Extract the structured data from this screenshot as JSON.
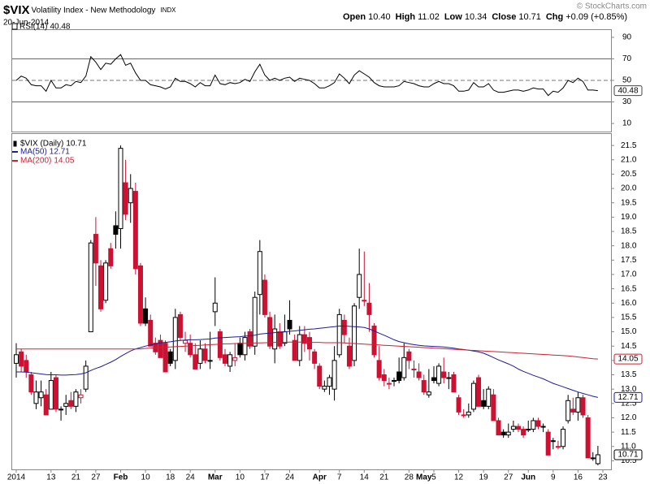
{
  "header": {
    "symbol": "$VIX",
    "name": "Volatility Index - New Methodology",
    "exchange": "INDX",
    "date": "20-Jun-2014",
    "watermark": "© StockCharts.com",
    "quote": [
      {
        "label": "Open",
        "value": "10.40"
      },
      {
        "label": "High",
        "value": "11.02"
      },
      {
        "label": "Low",
        "value": "10.34"
      },
      {
        "label": "Close",
        "value": "10.71"
      },
      {
        "label": "Chg",
        "value": "+0.09 (+0.85%)"
      }
    ]
  },
  "chart_data": [
    {
      "type": "line",
      "ylim": [
        2.5,
        97.5
      ],
      "yticks": [
        10,
        30,
        50,
        70,
        90
      ],
      "levels": [
        {
          "value": 70,
          "style": "solid"
        },
        {
          "value": 50,
          "style": "dashed"
        },
        {
          "value": 30,
          "style": "solid"
        }
      ],
      "series": [
        {
          "name": "RSI(14)",
          "label": "40.48",
          "color": "#000000",
          "values": [
            50,
            54,
            52,
            46,
            45,
            45,
            40,
            50,
            43,
            43,
            46,
            45,
            49,
            48,
            54,
            72,
            67,
            60,
            66,
            65,
            70,
            74,
            64,
            66,
            57,
            50,
            50,
            46,
            45,
            44,
            42,
            44,
            52,
            49,
            49,
            47,
            44,
            48,
            45,
            45,
            55,
            47,
            46,
            48,
            47,
            48,
            51,
            49,
            58,
            65,
            55,
            50,
            52,
            50,
            52,
            53,
            49,
            52,
            51,
            50,
            47,
            43,
            43,
            45,
            48,
            56,
            52,
            47,
            55,
            59,
            56,
            53,
            48,
            45,
            44,
            44,
            44,
            45,
            49,
            48,
            47,
            45,
            44,
            44,
            47,
            49,
            47,
            47,
            45,
            40,
            40,
            41,
            48,
            44,
            44,
            47,
            41,
            39,
            39,
            40,
            41,
            41,
            40,
            41,
            43,
            42,
            42,
            36,
            40,
            39,
            43,
            50,
            48,
            52,
            49,
            41,
            41,
            40.48,
            null
          ]
        }
      ]
    },
    {
      "type": "candlestick",
      "ylim": [
        10.2,
        21.9
      ],
      "yticks": [
        10.5,
        {
          "value": 11,
          "label": "11.0"
        },
        11.5,
        {
          "value": 12,
          "label": "12.0"
        },
        12.5,
        {
          "value": 13,
          "label": "13.0"
        },
        13.5,
        {
          "value": 14,
          "label": "14.0"
        },
        14.5,
        {
          "value": 15,
          "label": "15.0"
        },
        15.5,
        {
          "value": 16,
          "label": "16.0"
        },
        16.5,
        {
          "value": 17,
          "label": "17.0"
        },
        17.5,
        {
          "value": 18,
          "label": "18.0"
        },
        18.5,
        {
          "value": 19,
          "label": "19.0"
        },
        19.5,
        {
          "value": 20,
          "label": "20.0"
        },
        20.5,
        {
          "value": 21,
          "label": "21.0"
        },
        21.5
      ],
      "colors": {
        "up": "#000000",
        "down": "#cc1133"
      },
      "categories": [
        "2014",
        null,
        null,
        null,
        null,
        null,
        null,
        "13",
        null,
        null,
        null,
        null,
        "21",
        null,
        null,
        null,
        "27",
        null,
        null,
        null,
        null,
        "Feb",
        null,
        null,
        null,
        null,
        "10",
        null,
        null,
        null,
        null,
        "18",
        null,
        null,
        null,
        "24",
        null,
        null,
        null,
        null,
        "Mar",
        null,
        null,
        null,
        null,
        "10",
        null,
        null,
        null,
        null,
        "17",
        null,
        null,
        null,
        null,
        "24",
        null,
        null,
        null,
        null,
        null,
        "Apr",
        null,
        null,
        null,
        "7",
        null,
        null,
        null,
        null,
        "14",
        null,
        null,
        null,
        "21",
        null,
        null,
        null,
        null,
        "28",
        null,
        null,
        "May",
        null,
        "5",
        null,
        null,
        null,
        null,
        "12",
        null,
        null,
        null,
        null,
        "19",
        null,
        null,
        null,
        null,
        "27",
        null,
        null,
        null,
        "Jun",
        null,
        null,
        null,
        null,
        "9",
        null,
        null,
        null,
        null,
        "16",
        null,
        null,
        null,
        null,
        "23"
      ],
      "series": [
        {
          "name": "$VIX (Daily)",
          "label": "10.71",
          "color": "#000000",
          "open": [
            13.9,
            14.3,
            14.0,
            13.5,
            12.5,
            12.7,
            12.8,
            12.3,
            13.4,
            12.3,
            12.4,
            12.6,
            12.4,
            12.7,
            13.0,
            15.0,
            18.4,
            17.3,
            16.1,
            17.9,
            18.7,
            18.6,
            20.2,
            19.5,
            19.9,
            17.3,
            15.8,
            15.4,
            14.6,
            14.7,
            14.6,
            14.3,
            14.0,
            15.6,
            14.6,
            14.6,
            14.2,
            13.9,
            14.4,
            14.0,
            15.7,
            15.0,
            14.2,
            13.8,
            14.0,
            14.6,
            14.2,
            15.0,
            14.5,
            16.3,
            16.8,
            15.5,
            14.4,
            15.0,
            14.6,
            15.4,
            14.7,
            14.0,
            14.9,
            14.8,
            14.3,
            13.8,
            13.0,
            13.1,
            13.0,
            14.2,
            15.4,
            14.5,
            14.0,
            16.2,
            16.1,
            16.0,
            15.2,
            14.0,
            13.5,
            13.2,
            13.3,
            13.6,
            13.4,
            14.3,
            13.7,
            13.6,
            13.3,
            12.8,
            13.4,
            13.2,
            13.6,
            13.4,
            13.5,
            12.7,
            12.1,
            12.1,
            12.3,
            13.4,
            12.6,
            12.4,
            12.8,
            11.9,
            11.5,
            11.4,
            11.6,
            11.7,
            11.6,
            11.6,
            11.6,
            11.9,
            11.7,
            11.5,
            11.2,
            11.0,
            11.0,
            11.9,
            12.3,
            12.2,
            12.7,
            12.0,
            10.6,
            10.4,
            null
          ],
          "high": [
            14.6,
            14.4,
            14.2,
            13.6,
            13.3,
            13.3,
            13.0,
            13.6,
            13.5,
            12.4,
            12.8,
            12.9,
            13.0,
            13.0,
            14.0,
            18.2,
            19.0,
            17.5,
            17.5,
            18.1,
            19.2,
            21.5,
            21.0,
            20.5,
            20.2,
            17.4,
            16.2,
            15.6,
            14.8,
            14.9,
            14.7,
            14.4,
            15.8,
            15.7,
            15.0,
            14.9,
            14.6,
            14.7,
            14.6,
            15.0,
            16.9,
            15.1,
            14.4,
            14.3,
            14.6,
            14.8,
            15.0,
            15.1,
            16.4,
            18.2,
            17.0,
            15.7,
            15.6,
            15.3,
            15.6,
            16.1,
            14.9,
            15.2,
            15.2,
            15.0,
            14.4,
            13.9,
            13.3,
            13.5,
            14.5,
            15.8,
            15.6,
            14.8,
            16.0,
            17.9,
            17.8,
            16.7,
            15.3,
            14.5,
            13.7,
            13.4,
            13.4,
            14.1,
            14.6,
            14.4,
            14.0,
            13.9,
            13.5,
            13.7,
            13.8,
            13.9,
            14.1,
            13.6,
            13.6,
            12.8,
            12.3,
            12.5,
            13.3,
            13.5,
            13.0,
            13.1,
            13.0,
            12.0,
            11.6,
            11.8,
            11.9,
            11.8,
            11.7,
            11.9,
            12.0,
            12.0,
            11.8,
            11.6,
            11.3,
            11.2,
            11.7,
            12.8,
            12.7,
            12.9,
            12.8,
            12.1,
            10.8,
            11.02,
            null
          ],
          "low": [
            13.4,
            13.6,
            13.4,
            12.8,
            12.3,
            12.4,
            12.1,
            12.3,
            12.2,
            11.9,
            12.1,
            12.3,
            12.2,
            12.5,
            12.9,
            15.0,
            16.6,
            15.7,
            16.0,
            17.2,
            17.9,
            17.9,
            18.9,
            18.8,
            17.0,
            15.2,
            15.2,
            14.5,
            14.2,
            14.1,
            13.6,
            13.8,
            13.7,
            14.7,
            14.3,
            14.1,
            13.7,
            13.7,
            13.9,
            13.7,
            15.2,
            14.0,
            13.8,
            13.6,
            13.8,
            14.1,
            14.0,
            14.4,
            14.2,
            15.6,
            15.5,
            14.4,
            13.9,
            14.4,
            14.5,
            14.9,
            14.0,
            13.8,
            14.3,
            14.0,
            13.7,
            13.0,
            12.9,
            12.8,
            12.6,
            14.1,
            14.6,
            13.7,
            13.8,
            15.8,
            15.9,
            15.0,
            14.1,
            13.3,
            13.1,
            13.0,
            13.1,
            13.2,
            13.3,
            13.7,
            13.4,
            13.3,
            12.8,
            12.7,
            13.2,
            13.1,
            13.2,
            13.0,
            12.9,
            12.1,
            12.0,
            12.0,
            12.2,
            12.4,
            12.3,
            12.3,
            11.9,
            11.4,
            11.3,
            11.3,
            11.5,
            11.5,
            11.3,
            11.5,
            11.5,
            11.6,
            11.5,
            10.7,
            10.9,
            10.9,
            10.9,
            11.8,
            12.1,
            11.9,
            12.0,
            10.6,
            10.5,
            10.34,
            null
          ],
          "close": [
            14.2,
            13.8,
            13.6,
            12.9,
            12.9,
            12.9,
            12.1,
            13.3,
            12.3,
            12.3,
            12.5,
            12.4,
            12.9,
            12.8,
            13.8,
            18.1,
            17.4,
            15.8,
            17.4,
            17.3,
            18.4,
            21.4,
            19.1,
            20.0,
            17.2,
            15.3,
            15.3,
            14.5,
            14.3,
            14.1,
            13.6,
            13.9,
            15.5,
            14.8,
            14.7,
            14.2,
            13.7,
            14.4,
            14.0,
            14.0,
            16.0,
            14.1,
            13.9,
            14.2,
            14.1,
            14.2,
            14.8,
            14.5,
            16.2,
            17.8,
            15.6,
            14.5,
            15.1,
            14.5,
            15.0,
            15.1,
            14.0,
            14.9,
            14.6,
            14.4,
            13.9,
            13.1,
            13.1,
            13.4,
            14.0,
            15.6,
            14.9,
            13.8,
            15.9,
            17.0,
            16.1,
            15.6,
            14.2,
            13.4,
            13.3,
            13.2,
            13.3,
            13.3,
            14.1,
            14.0,
            13.7,
            13.4,
            12.9,
            12.9,
            13.3,
            13.8,
            13.4,
            13.4,
            12.9,
            12.2,
            12.1,
            12.2,
            13.2,
            12.4,
            12.4,
            13.0,
            11.9,
            11.4,
            11.4,
            11.5,
            11.7,
            11.6,
            11.4,
            11.6,
            11.9,
            11.7,
            11.7,
            10.7,
            11.2,
            11.0,
            11.6,
            12.6,
            12.2,
            12.7,
            12.1,
            10.6,
            10.6,
            10.71,
            null
          ]
        },
        {
          "name": "MA(50)",
          "label": "12.71",
          "color": "#1c1c9c",
          "values": [
            13.6,
            13.6,
            13.59,
            13.57,
            13.55,
            13.53,
            13.51,
            13.5,
            13.5,
            13.49,
            13.49,
            13.5,
            13.51,
            13.53,
            13.57,
            13.65,
            13.72,
            13.78,
            13.86,
            13.94,
            14.03,
            14.14,
            14.24,
            14.33,
            14.4,
            14.45,
            14.5,
            14.54,
            14.58,
            14.61,
            14.63,
            14.65,
            14.68,
            14.7,
            14.71,
            14.72,
            14.72,
            14.73,
            14.74,
            14.75,
            14.78,
            14.79,
            14.8,
            14.81,
            14.82,
            14.83,
            14.85,
            14.86,
            14.88,
            14.92,
            14.94,
            14.95,
            14.97,
            14.98,
            15.0,
            15.02,
            15.03,
            15.05,
            15.07,
            15.09,
            15.1,
            15.12,
            15.14,
            15.16,
            15.18,
            15.2,
            15.2,
            15.19,
            15.18,
            15.17,
            15.15,
            15.1,
            15.03,
            14.95,
            14.88,
            14.8,
            14.72,
            14.66,
            14.62,
            14.58,
            14.55,
            14.53,
            14.51,
            14.5,
            14.49,
            14.48,
            14.47,
            14.45,
            14.43,
            14.4,
            14.38,
            14.36,
            14.33,
            14.3,
            14.25,
            14.18,
            14.1,
            14.02,
            13.95,
            13.88,
            13.8,
            13.7,
            13.62,
            13.55,
            13.48,
            13.42,
            13.36,
            13.28,
            13.2,
            13.14,
            13.08,
            13.02,
            12.96,
            12.9,
            12.85,
            12.8,
            12.75,
            12.71,
            null
          ]
        },
        {
          "name": "MA(200)",
          "label": "14.05",
          "color": "#cc2233",
          "values": [
            14.4,
            14.4,
            14.4,
            14.4,
            14.4,
            14.4,
            14.4,
            14.4,
            14.4,
            14.4,
            14.4,
            14.4,
            14.4,
            14.4,
            14.4,
            14.4,
            14.4,
            14.4,
            14.4,
            14.4,
            14.4,
            14.4,
            14.4,
            14.4,
            14.4,
            14.4,
            14.42,
            14.43,
            14.44,
            14.45,
            14.46,
            14.47,
            14.48,
            14.49,
            14.5,
            14.51,
            14.52,
            14.53,
            14.54,
            14.55,
            14.56,
            14.57,
            14.58,
            14.58,
            14.59,
            14.59,
            14.6,
            14.6,
            14.61,
            14.61,
            14.62,
            14.62,
            14.63,
            14.63,
            14.63,
            14.64,
            14.64,
            14.64,
            14.64,
            14.63,
            14.63,
            14.63,
            14.62,
            14.62,
            14.62,
            14.62,
            14.61,
            14.6,
            14.59,
            14.58,
            14.57,
            14.56,
            14.55,
            14.54,
            14.53,
            14.52,
            14.51,
            14.5,
            14.49,
            14.48,
            14.47,
            14.46,
            14.45,
            14.44,
            14.43,
            14.42,
            14.41,
            14.4,
            14.39,
            14.38,
            14.37,
            14.36,
            14.35,
            14.34,
            14.33,
            14.32,
            14.31,
            14.3,
            14.29,
            14.28,
            14.27,
            14.26,
            14.25,
            14.24,
            14.23,
            14.22,
            14.21,
            14.2,
            14.19,
            14.18,
            14.17,
            14.16,
            14.14,
            14.12,
            14.1,
            14.08,
            14.06,
            14.05,
            null
          ]
        }
      ]
    }
  ]
}
